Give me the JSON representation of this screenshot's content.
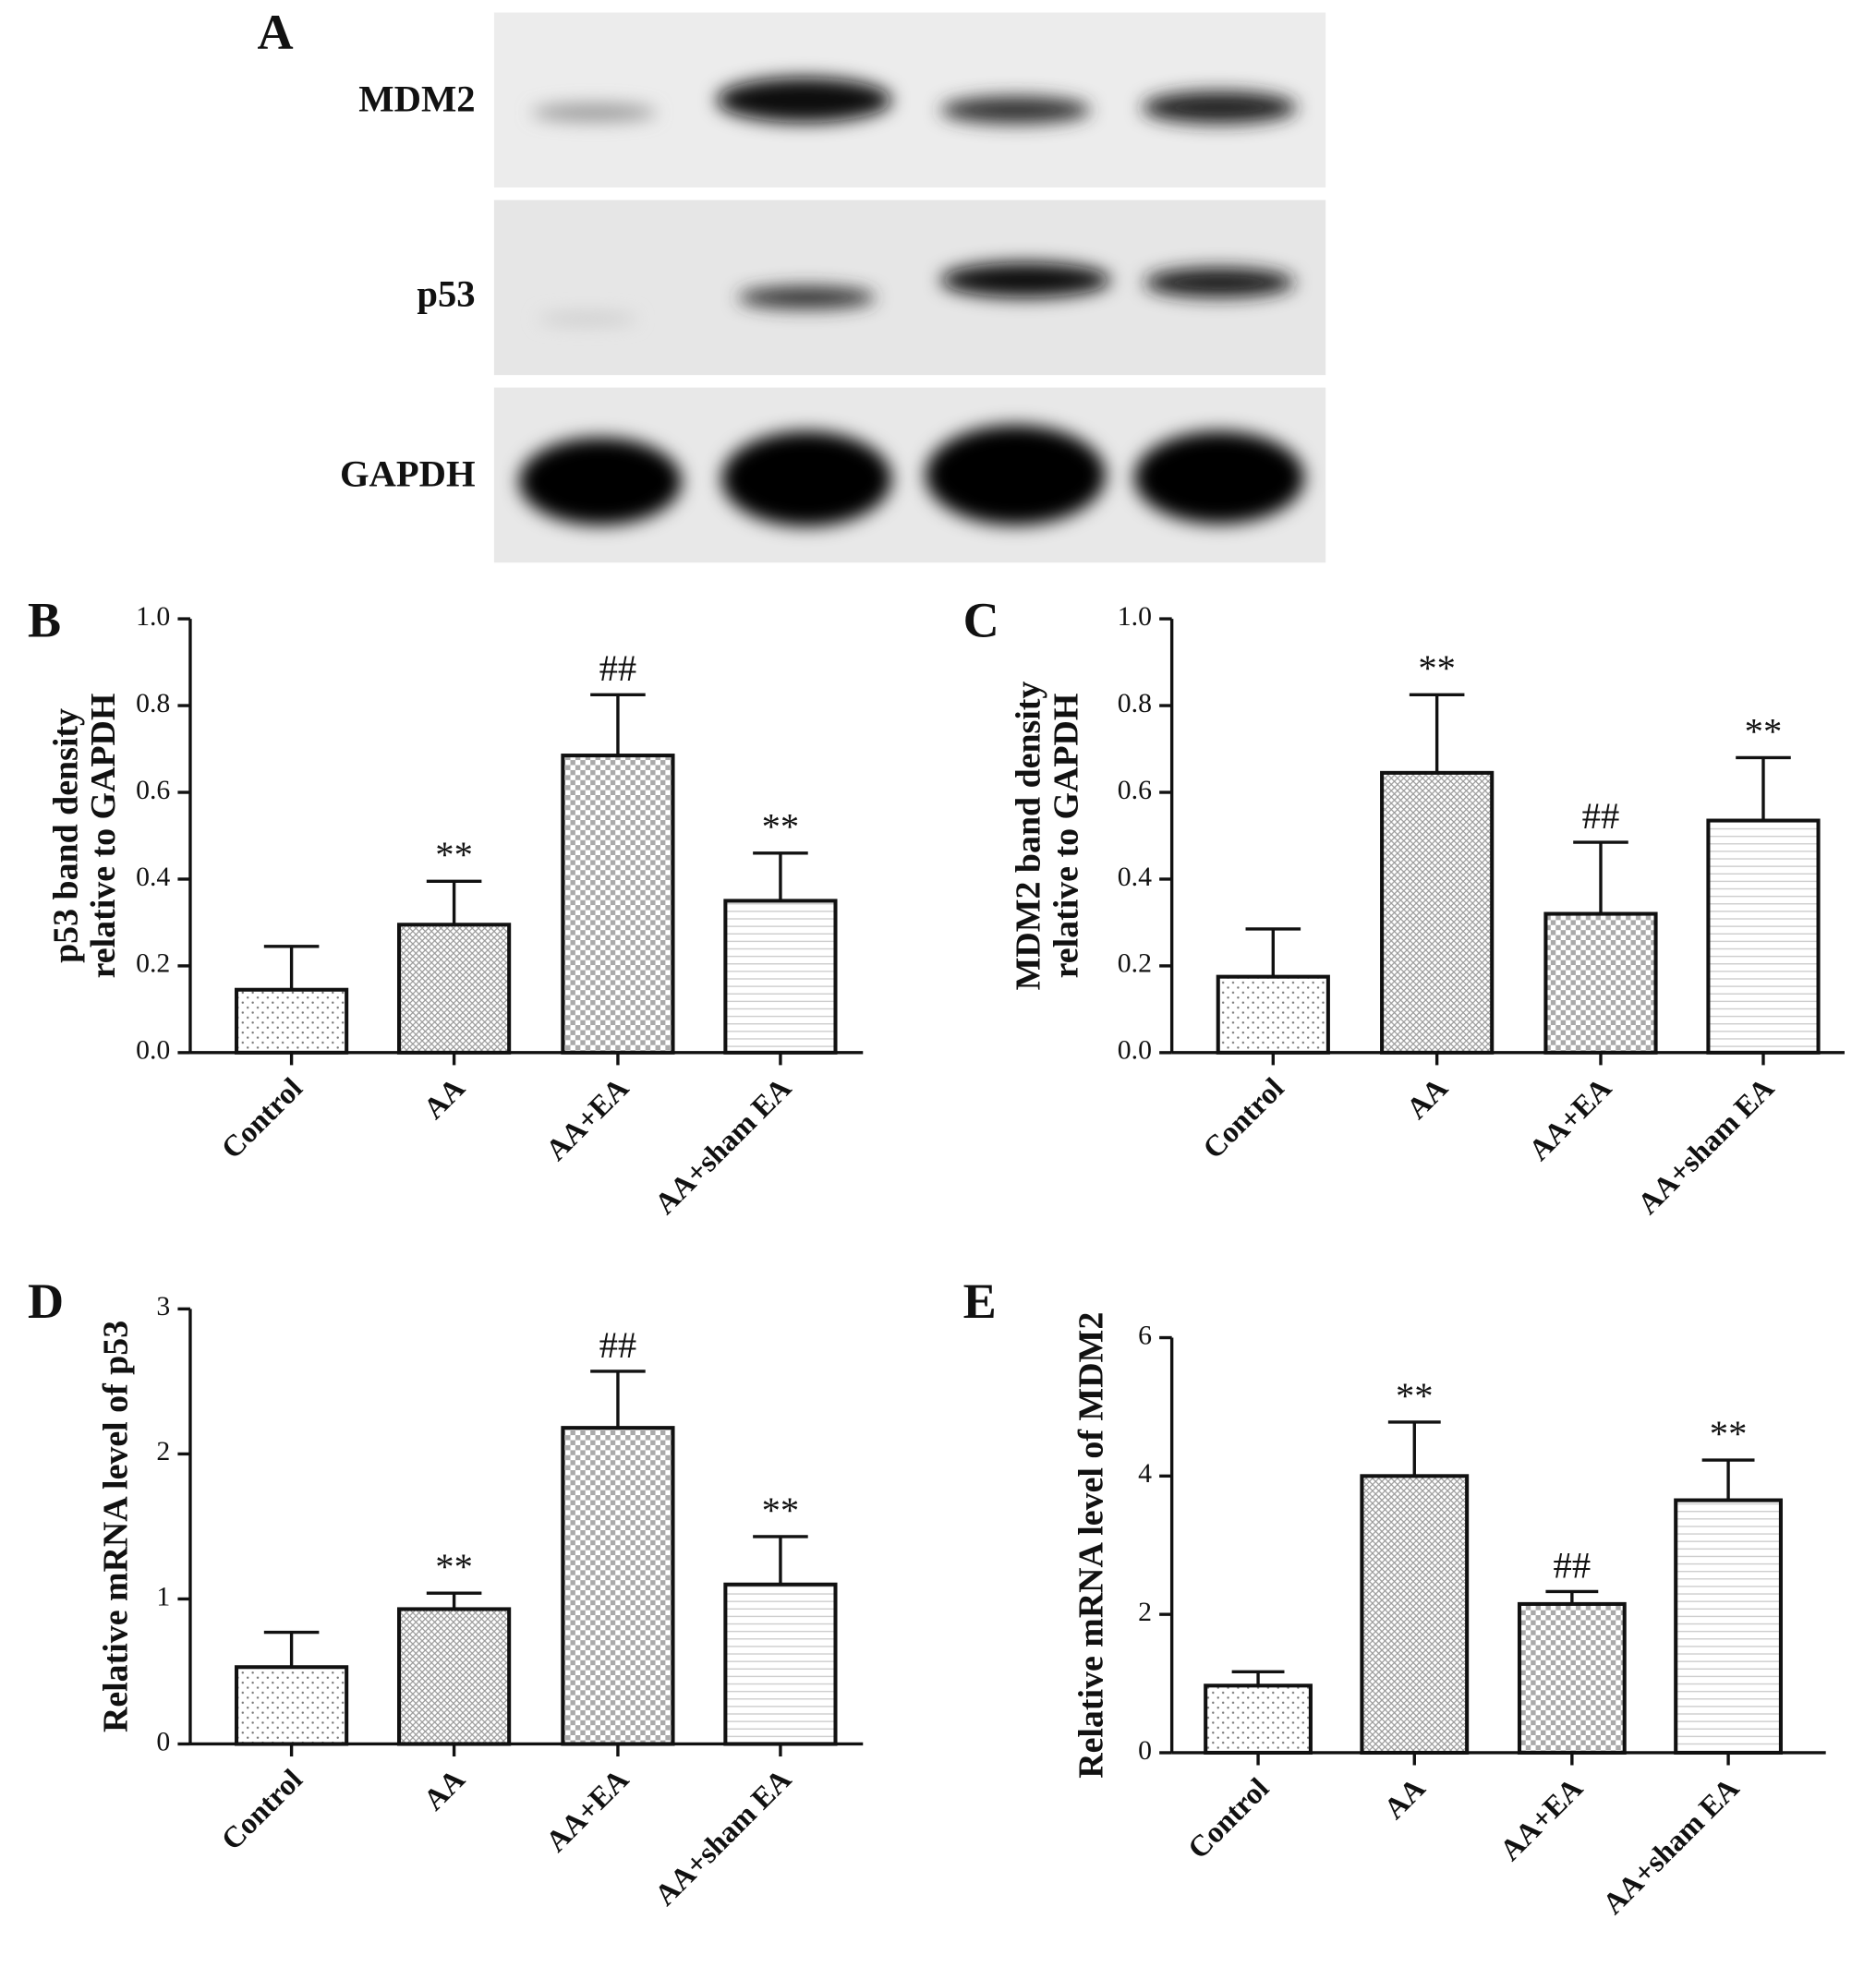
{
  "blot": {
    "label": "A",
    "rows": [
      "MDM2",
      "p53",
      "GAPDH"
    ]
  },
  "chart_data": [
    {
      "type": "bar",
      "panel": "B",
      "ylabel": [
        "p53 band density",
        "relative to GAPDH"
      ],
      "categories": [
        "Control",
        "AA",
        "AA+EA",
        "AA+sham EA"
      ],
      "values": [
        0.145,
        0.295,
        0.685,
        0.35
      ],
      "errors": [
        0.1,
        0.1,
        0.14,
        0.11
      ],
      "annotations": [
        null,
        "**",
        "##",
        "**"
      ],
      "ylim": [
        0,
        1
      ],
      "yticks": [
        {
          "value": 0,
          "label": "0.0"
        },
        0.2,
        0.4,
        0.6,
        0.8,
        {
          "value": 1,
          "label": "1.0"
        }
      ]
    },
    {
      "type": "bar",
      "panel": "C",
      "ylabel": [
        "MDM2 band density",
        "relative to GAPDH"
      ],
      "categories": [
        "Control",
        "AA",
        "AA+EA",
        "AA+sham EA"
      ],
      "values": [
        0.175,
        0.645,
        0.32,
        0.535
      ],
      "errors": [
        0.11,
        0.18,
        0.165,
        0.145
      ],
      "annotations": [
        null,
        "**",
        "##",
        "**"
      ],
      "ylim": [
        0,
        1
      ],
      "yticks": [
        {
          "value": 0,
          "label": "0.0"
        },
        0.2,
        0.4,
        0.6,
        0.8,
        {
          "value": 1,
          "label": "1.0"
        }
      ]
    },
    {
      "type": "bar",
      "panel": "D",
      "ylabel": [
        "Relative mRNA level of p53"
      ],
      "categories": [
        "Control",
        "AA",
        "AA+EA",
        "AA+sham EA"
      ],
      "values": [
        0.53,
        0.93,
        2.18,
        1.1
      ],
      "errors": [
        0.24,
        0.11,
        0.39,
        0.33
      ],
      "annotations": [
        null,
        "**",
        "##",
        "**"
      ],
      "ylim": [
        0,
        3
      ],
      "yticks": [
        0,
        1,
        2,
        3
      ]
    },
    {
      "type": "bar",
      "panel": "E",
      "ylabel": [
        "Relative mRNA level of MDM2"
      ],
      "categories": [
        "Control",
        "AA",
        "AA+EA",
        "AA+sham EA"
      ],
      "values": [
        0.97,
        4.0,
        2.15,
        3.65
      ],
      "errors": [
        0.2,
        0.78,
        0.18,
        0.58
      ],
      "annotations": [
        null,
        "**",
        "##",
        "**"
      ],
      "ylim": [
        0,
        6
      ],
      "yticks": [
        0,
        2,
        4,
        6
      ]
    }
  ]
}
